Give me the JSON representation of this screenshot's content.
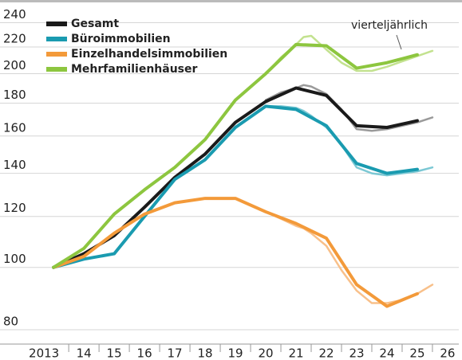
{
  "chart_data": {
    "type": "line",
    "log_y": true,
    "grid": true,
    "legend": "top-left",
    "annotation": "vierteljährlich",
    "x": [
      2013,
      2014,
      2015,
      2016,
      2017,
      2018,
      2019,
      2020,
      2021,
      2022,
      2023,
      2024,
      2025
    ],
    "xlim": [
      2012.47,
      2026.37
    ],
    "xticks": [
      {
        "value": 2013,
        "label": "2013"
      },
      {
        "value": 2014,
        "label": "14"
      },
      {
        "value": 2015,
        "label": "15"
      },
      {
        "value": 2016,
        "label": "16"
      },
      {
        "value": 2017,
        "label": "17"
      },
      {
        "value": 2018,
        "label": "18"
      },
      {
        "value": 2019,
        "label": "19"
      },
      {
        "value": 2020,
        "label": "20"
      },
      {
        "value": 2021,
        "label": "21"
      },
      {
        "value": 2022,
        "label": "22"
      },
      {
        "value": 2023,
        "label": "23"
      },
      {
        "value": 2024,
        "label": "24"
      },
      {
        "value": 2025,
        "label": "25"
      },
      {
        "value": 2026,
        "label": "26"
      }
    ],
    "ylim": [
      76,
      253
    ],
    "yticks": [
      80,
      100,
      120,
      140,
      160,
      180,
      200,
      220,
      240
    ],
    "series": [
      {
        "name": "Gesamt",
        "color": "#1a1a1a",
        "values": [
          100,
          105,
          112,
          124,
          138,
          150,
          168,
          181,
          190,
          185,
          166,
          165,
          169
        ]
      },
      {
        "name": "Büroimmobilien",
        "color": "#1a9bb0",
        "values": [
          100,
          103,
          105,
          120,
          137,
          147,
          165,
          178,
          176,
          166,
          145,
          140,
          142
        ]
      },
      {
        "name": "Einzelhandelsimmobilien",
        "color": "#f39a3a",
        "values": [
          100,
          104,
          113,
          121,
          126,
          128,
          128,
          122,
          117,
          111,
          94,
          87,
          91
        ]
      },
      {
        "name": "Mehrfamilienhäuser",
        "color": "#8dc63f",
        "values": [
          100,
          107,
          121,
          132,
          143,
          158,
          182,
          200,
          222,
          221,
          204,
          208,
          214
        ]
      }
    ],
    "quarterly_x": [
      2020,
      2020.5,
      2021,
      2021.25,
      2021.5,
      2022,
      2022.5,
      2023,
      2023.5,
      2024,
      2024.5,
      2025,
      2025.5
    ],
    "quarterly_series": [
      {
        "color": "#9a9a9a",
        "values": [
          182,
          187,
          190,
          192,
          191,
          186,
          176,
          164,
          163,
          164,
          166,
          168,
          171
        ]
      },
      {
        "color": "#7cc8d4",
        "values": [
          178,
          178,
          177,
          175,
          172,
          165,
          155,
          143,
          140,
          139,
          140,
          141,
          143
        ]
      },
      {
        "color": "#f8c08a",
        "values": [
          122,
          119,
          116,
          115,
          113,
          108,
          99,
          92,
          88,
          88,
          89,
          91,
          94
        ]
      },
      {
        "color": "#c3e28f",
        "values": [
          200,
          212,
          222,
          228,
          229,
          218,
          208,
          202,
          202,
          205,
          209,
          213,
          217
        ]
      }
    ]
  }
}
